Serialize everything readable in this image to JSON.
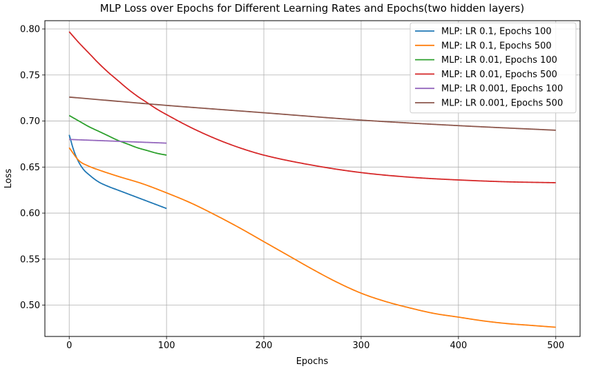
{
  "chart_data": {
    "type": "line",
    "title": "MLP Loss over Epochs for Different Learning Rates and Epochs(two hidden layers)",
    "xlabel": "Epochs",
    "ylabel": "Loss",
    "xlim": [
      -25,
      525
    ],
    "ylim": [
      0.466,
      0.809
    ],
    "xticks": [
      0,
      100,
      200,
      300,
      400,
      500
    ],
    "xtick_labels": [
      "0",
      "100",
      "200",
      "300",
      "400",
      "500"
    ],
    "yticks": [
      0.5,
      0.55,
      0.6,
      0.65,
      0.7,
      0.75,
      0.8
    ],
    "ytick_labels": [
      "0.50",
      "0.55",
      "0.60",
      "0.65",
      "0.70",
      "0.75",
      "0.80"
    ],
    "grid": true,
    "legend_position": "top-right",
    "series": [
      {
        "name": "MLP: LR 0.1, Epochs 100",
        "color": "#1f77b4",
        "x": [
          0,
          5,
          10,
          15,
          20,
          30,
          40,
          50,
          60,
          70,
          80,
          90,
          100
        ],
        "y": [
          0.685,
          0.667,
          0.655,
          0.647,
          0.642,
          0.634,
          0.629,
          0.625,
          0.621,
          0.617,
          0.613,
          0.609,
          0.605
        ]
      },
      {
        "name": "MLP: LR 0.1, Epochs 500",
        "color": "#ff7f0e",
        "x": [
          0,
          10,
          20,
          30,
          50,
          75,
          100,
          125,
          150,
          175,
          200,
          225,
          250,
          275,
          300,
          325,
          350,
          375,
          400,
          425,
          450,
          475,
          500
        ],
        "y": [
          0.671,
          0.657,
          0.651,
          0.647,
          0.64,
          0.632,
          0.622,
          0.611,
          0.598,
          0.584,
          0.569,
          0.554,
          0.539,
          0.525,
          0.513,
          0.504,
          0.497,
          0.491,
          0.487,
          0.483,
          0.48,
          0.478,
          0.476
        ]
      },
      {
        "name": "MLP: LR 0.01, Epochs 100",
        "color": "#2ca02c",
        "x": [
          0,
          10,
          20,
          30,
          40,
          50,
          60,
          70,
          80,
          90,
          100
        ],
        "y": [
          0.706,
          0.7,
          0.694,
          0.689,
          0.684,
          0.679,
          0.675,
          0.671,
          0.668,
          0.665,
          0.663
        ]
      },
      {
        "name": "MLP: LR 0.01, Epochs 500",
        "color": "#d62728",
        "x": [
          0,
          10,
          20,
          30,
          40,
          50,
          60,
          70,
          80,
          90,
          100,
          125,
          150,
          175,
          200,
          250,
          300,
          350,
          400,
          450,
          500
        ],
        "y": [
          0.797,
          0.785,
          0.774,
          0.763,
          0.753,
          0.744,
          0.735,
          0.727,
          0.72,
          0.713,
          0.707,
          0.693,
          0.681,
          0.671,
          0.663,
          0.652,
          0.644,
          0.639,
          0.636,
          0.634,
          0.633
        ]
      },
      {
        "name": "MLP: LR 0.001, Epochs 100",
        "color": "#9467bd",
        "x": [
          0,
          25,
          50,
          75,
          100
        ],
        "y": [
          0.68,
          0.679,
          0.678,
          0.677,
          0.676
        ]
      },
      {
        "name": "MLP: LR 0.001, Epochs 500",
        "color": "#8c564b",
        "x": [
          0,
          100,
          200,
          300,
          400,
          500
        ],
        "y": [
          0.726,
          0.717,
          0.709,
          0.701,
          0.695,
          0.69
        ]
      }
    ]
  }
}
